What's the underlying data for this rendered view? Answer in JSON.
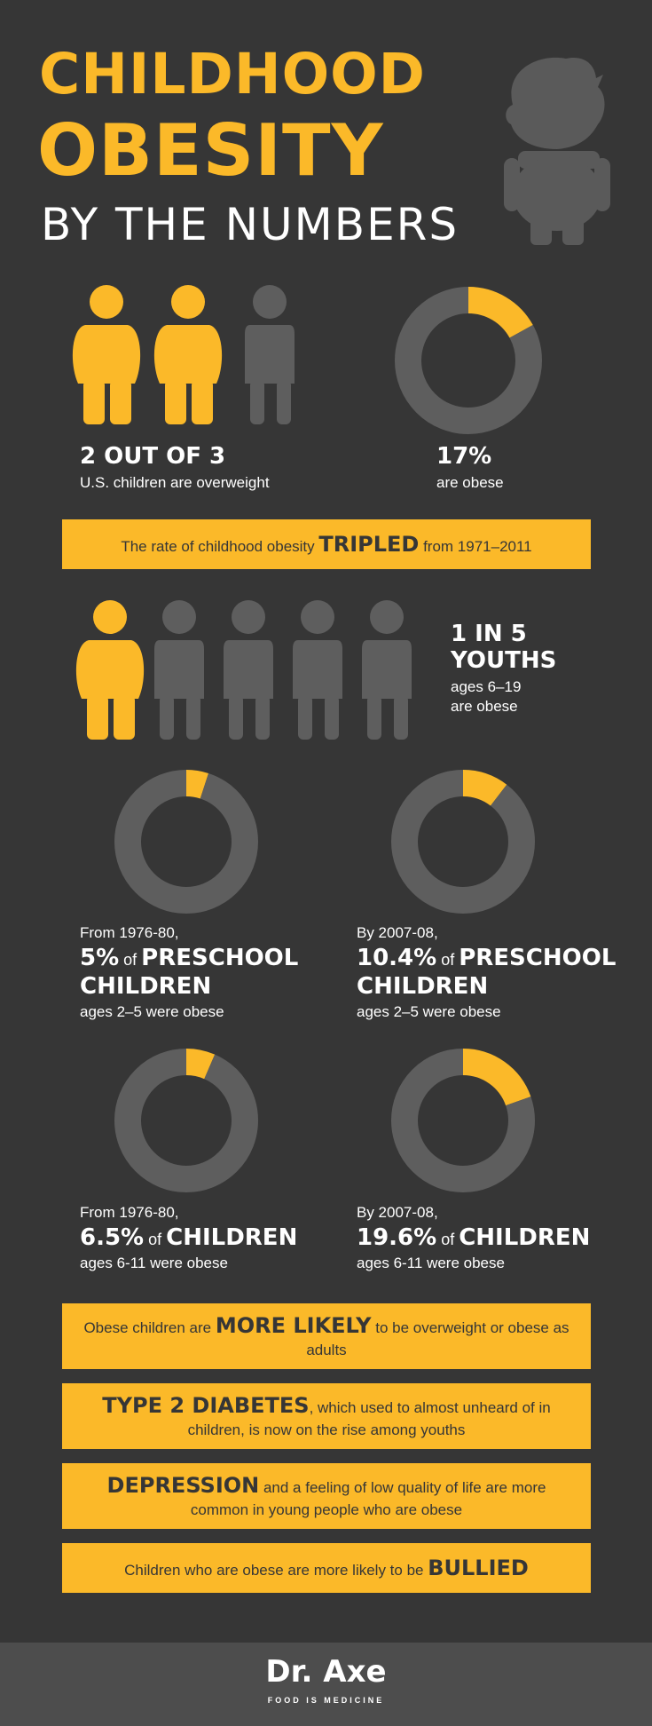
{
  "title": {
    "line1": "CHILDHOOD",
    "line2": "OBESITY",
    "line3": "BY THE NUMBERS"
  },
  "colors": {
    "accent": "#fbb929",
    "gray": "#5e5e5e",
    "background": "#363636"
  },
  "stat_overweight": {
    "big": "2 OUT OF 3",
    "small": "U.S. children are overweight",
    "figures_highlighted": 2,
    "figures_total": 3
  },
  "stat_obese": {
    "big": "17%",
    "small": "are obese"
  },
  "band_tripled": {
    "pre": "The rate of childhood obesity ",
    "bold": "TRIPLED",
    "post": " from 1971–2011"
  },
  "stat_youths": {
    "big1": "1 IN 5",
    "big2": "YOUTHS",
    "small1": "ages 6–19",
    "small2": "are obese",
    "figures_highlighted": 1,
    "figures_total": 5
  },
  "donuts": {
    "preschool_1976": {
      "pre": "From 1976-80,",
      "pct": "5%",
      "of": " of ",
      "line1": "PRESCHOOL",
      "line2": "CHILDREN",
      "sub": "ages 2–5 were obese"
    },
    "preschool_2007": {
      "pre": "By 2007-08,",
      "pct": "10.4%",
      "of": " of ",
      "line1": "PRESCHOOL",
      "line2": "CHILDREN",
      "sub": "ages 2–5 were obese"
    },
    "children_1976": {
      "pre": "From 1976-80,",
      "pct": "6.5%",
      "of": " of ",
      "line1": "CHILDREN",
      "sub": "ages 6-11 were obese"
    },
    "children_2007": {
      "pre": "By 2007-08,",
      "pct": "19.6%",
      "of": " of ",
      "line1": "CHILDREN",
      "sub": "ages 6-11 were obese"
    }
  },
  "bands": {
    "likely": {
      "pre": "Obese children are ",
      "bold": "MORE LIKELY",
      "post": " to be overweight or obese as adults"
    },
    "diabetes": {
      "bold": "TYPE 2 DIABETES",
      "post": ", which used to almost unheard of in children, is now on the rise among youths"
    },
    "depression": {
      "bold": "DEPRESSION",
      "post": " and a feeling of low quality of life are more common in young people who are obese"
    },
    "bullied": {
      "pre": "Children who are obese are more likely to be ",
      "bold": "BULLIED"
    }
  },
  "footer": {
    "brand": "Dr. Axe",
    "tagline": "FOOD IS MEDICINE"
  },
  "chart_data": [
    {
      "type": "pie",
      "style": "donut",
      "labels": [
        "obese",
        "other"
      ],
      "values": [
        17,
        83
      ]
    },
    {
      "type": "pie",
      "style": "donut",
      "labels": [
        "obese",
        "other"
      ],
      "values": [
        5,
        95
      ]
    },
    {
      "type": "pie",
      "style": "donut",
      "labels": [
        "obese",
        "other"
      ],
      "values": [
        10.4,
        89.6
      ]
    },
    {
      "type": "pie",
      "style": "donut",
      "labels": [
        "obese",
        "other"
      ],
      "values": [
        6.5,
        93.5
      ]
    },
    {
      "type": "pie",
      "style": "donut",
      "labels": [
        "obese",
        "other"
      ],
      "values": [
        19.6,
        80.4
      ]
    }
  ]
}
